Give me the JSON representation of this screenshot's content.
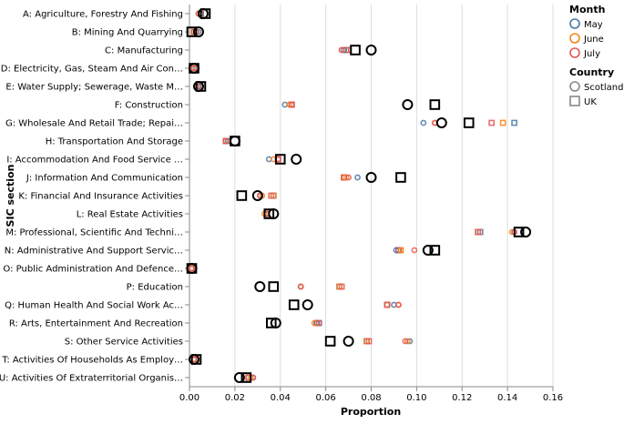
{
  "chart_data": {
    "type": "scatter",
    "xlabel": "Proportion",
    "ylabel": "SIC section",
    "xlim": [
      0,
      0.16
    ],
    "xticks": [
      0,
      0.02,
      0.04,
      0.06,
      0.08,
      0.1,
      0.12,
      0.14,
      0.16
    ],
    "xtick_labels": [
      "0.00",
      "0.02",
      "0.04",
      "0.06",
      "0.08",
      "0.10",
      "0.12",
      "0.14",
      "0.16"
    ],
    "grid": true,
    "legend_position": "right",
    "legend": {
      "month_title": "Month",
      "months": [
        {
          "label": "May",
          "color": "#4c78a8"
        },
        {
          "label": "June",
          "color": "#f58518"
        },
        {
          "label": "July",
          "color": "#e45756"
        }
      ],
      "country_title": "Country",
      "countries": [
        {
          "label": "Scotland",
          "shape": "circle"
        },
        {
          "label": "UK",
          "shape": "square"
        }
      ]
    },
    "categories": [
      "A: Agriculture, Forestry And Fishing",
      "B: Mining And Quarrying",
      "C: Manufacturing",
      "D: Electricity, Gas, Steam And Air Con…",
      "E: Water Supply; Sewerage, Waste M…",
      "F: Construction",
      "G: Wholesale And Retail Trade; Repai…",
      "H: Transportation And Storage",
      "I: Accommodation And Food Service …",
      "J: Information And Communication",
      "K: Financial And Insurance Activities",
      "L: Real Estate Activities",
      "M: Professional, Scientific And Techni…",
      "N: Administrative And Support Servic…",
      "O: Public Administration And Defence…",
      "P: Education",
      "Q: Human Health And Social Work Ac…",
      "R: Arts, Entertainment And Recreation",
      "S: Other Service Activities",
      "T: Activities Of Households As Employ…",
      "U: Activities Of Extraterritorial Organis…"
    ],
    "month_points": {
      "Scotland": {
        "May": [
          0.005,
          0.004,
          0.068,
          0.003,
          0.004,
          0.042,
          0.103,
          0.017,
          0.035,
          0.074,
          0.031,
          0.034,
          0.143,
          0.091,
          0.001,
          0.049,
          0.09,
          0.056,
          0.097,
          0.002,
          0.028
        ],
        "June": [
          0.004,
          0.003,
          0.067,
          0.002,
          0.003,
          0.044,
          0.108,
          0.016,
          0.037,
          0.069,
          0.032,
          0.033,
          0.142,
          0.093,
          0.001,
          0.049,
          0.092,
          0.055,
          0.096,
          0.002,
          0.027
        ],
        "July": [
          0.004,
          0.003,
          0.067,
          0.002,
          0.003,
          0.045,
          0.108,
          0.016,
          0.039,
          0.07,
          0.031,
          0.034,
          0.143,
          0.099,
          0.001,
          0.049,
          0.092,
          0.057,
          0.095,
          0.002,
          0.028
        ]
      },
      "UK": {
        "May": [
          0.005,
          0.002,
          0.07,
          0.002,
          0.004,
          0.045,
          0.143,
          0.016,
          0.039,
          0.068,
          0.037,
          0.034,
          0.128,
          0.092,
          0.001,
          0.066,
          0.087,
          0.057,
          0.078,
          0.002,
          0.026
        ],
        "June": [
          0.005,
          0.002,
          0.069,
          0.002,
          0.004,
          0.045,
          0.138,
          0.016,
          0.039,
          0.068,
          0.037,
          0.034,
          0.127,
          0.093,
          0.001,
          0.066,
          0.087,
          0.056,
          0.078,
          0.002,
          0.026
        ],
        "July": [
          0.005,
          0.002,
          0.069,
          0.002,
          0.004,
          0.045,
          0.133,
          0.016,
          0.039,
          0.068,
          0.036,
          0.034,
          0.127,
          0.092,
          0.001,
          0.067,
          0.087,
          0.056,
          0.079,
          0.002,
          0.026
        ]
      }
    },
    "annual_points": {
      "Scotland": [
        0.006,
        0.004,
        0.08,
        0.002,
        0.004,
        0.096,
        0.111,
        0.02,
        0.047,
        0.08,
        0.03,
        0.037,
        0.148,
        0.105,
        0.001,
        0.031,
        0.052,
        0.038,
        0.07,
        0.002,
        0.022
      ],
      "UK": [
        0.007,
        0.001,
        0.073,
        0.002,
        0.005,
        0.108,
        0.123,
        0.02,
        0.04,
        0.093,
        0.023,
        0.035,
        0.145,
        0.108,
        0.001,
        0.037,
        0.046,
        0.036,
        0.062,
        0.003,
        0.025
      ]
    }
  }
}
